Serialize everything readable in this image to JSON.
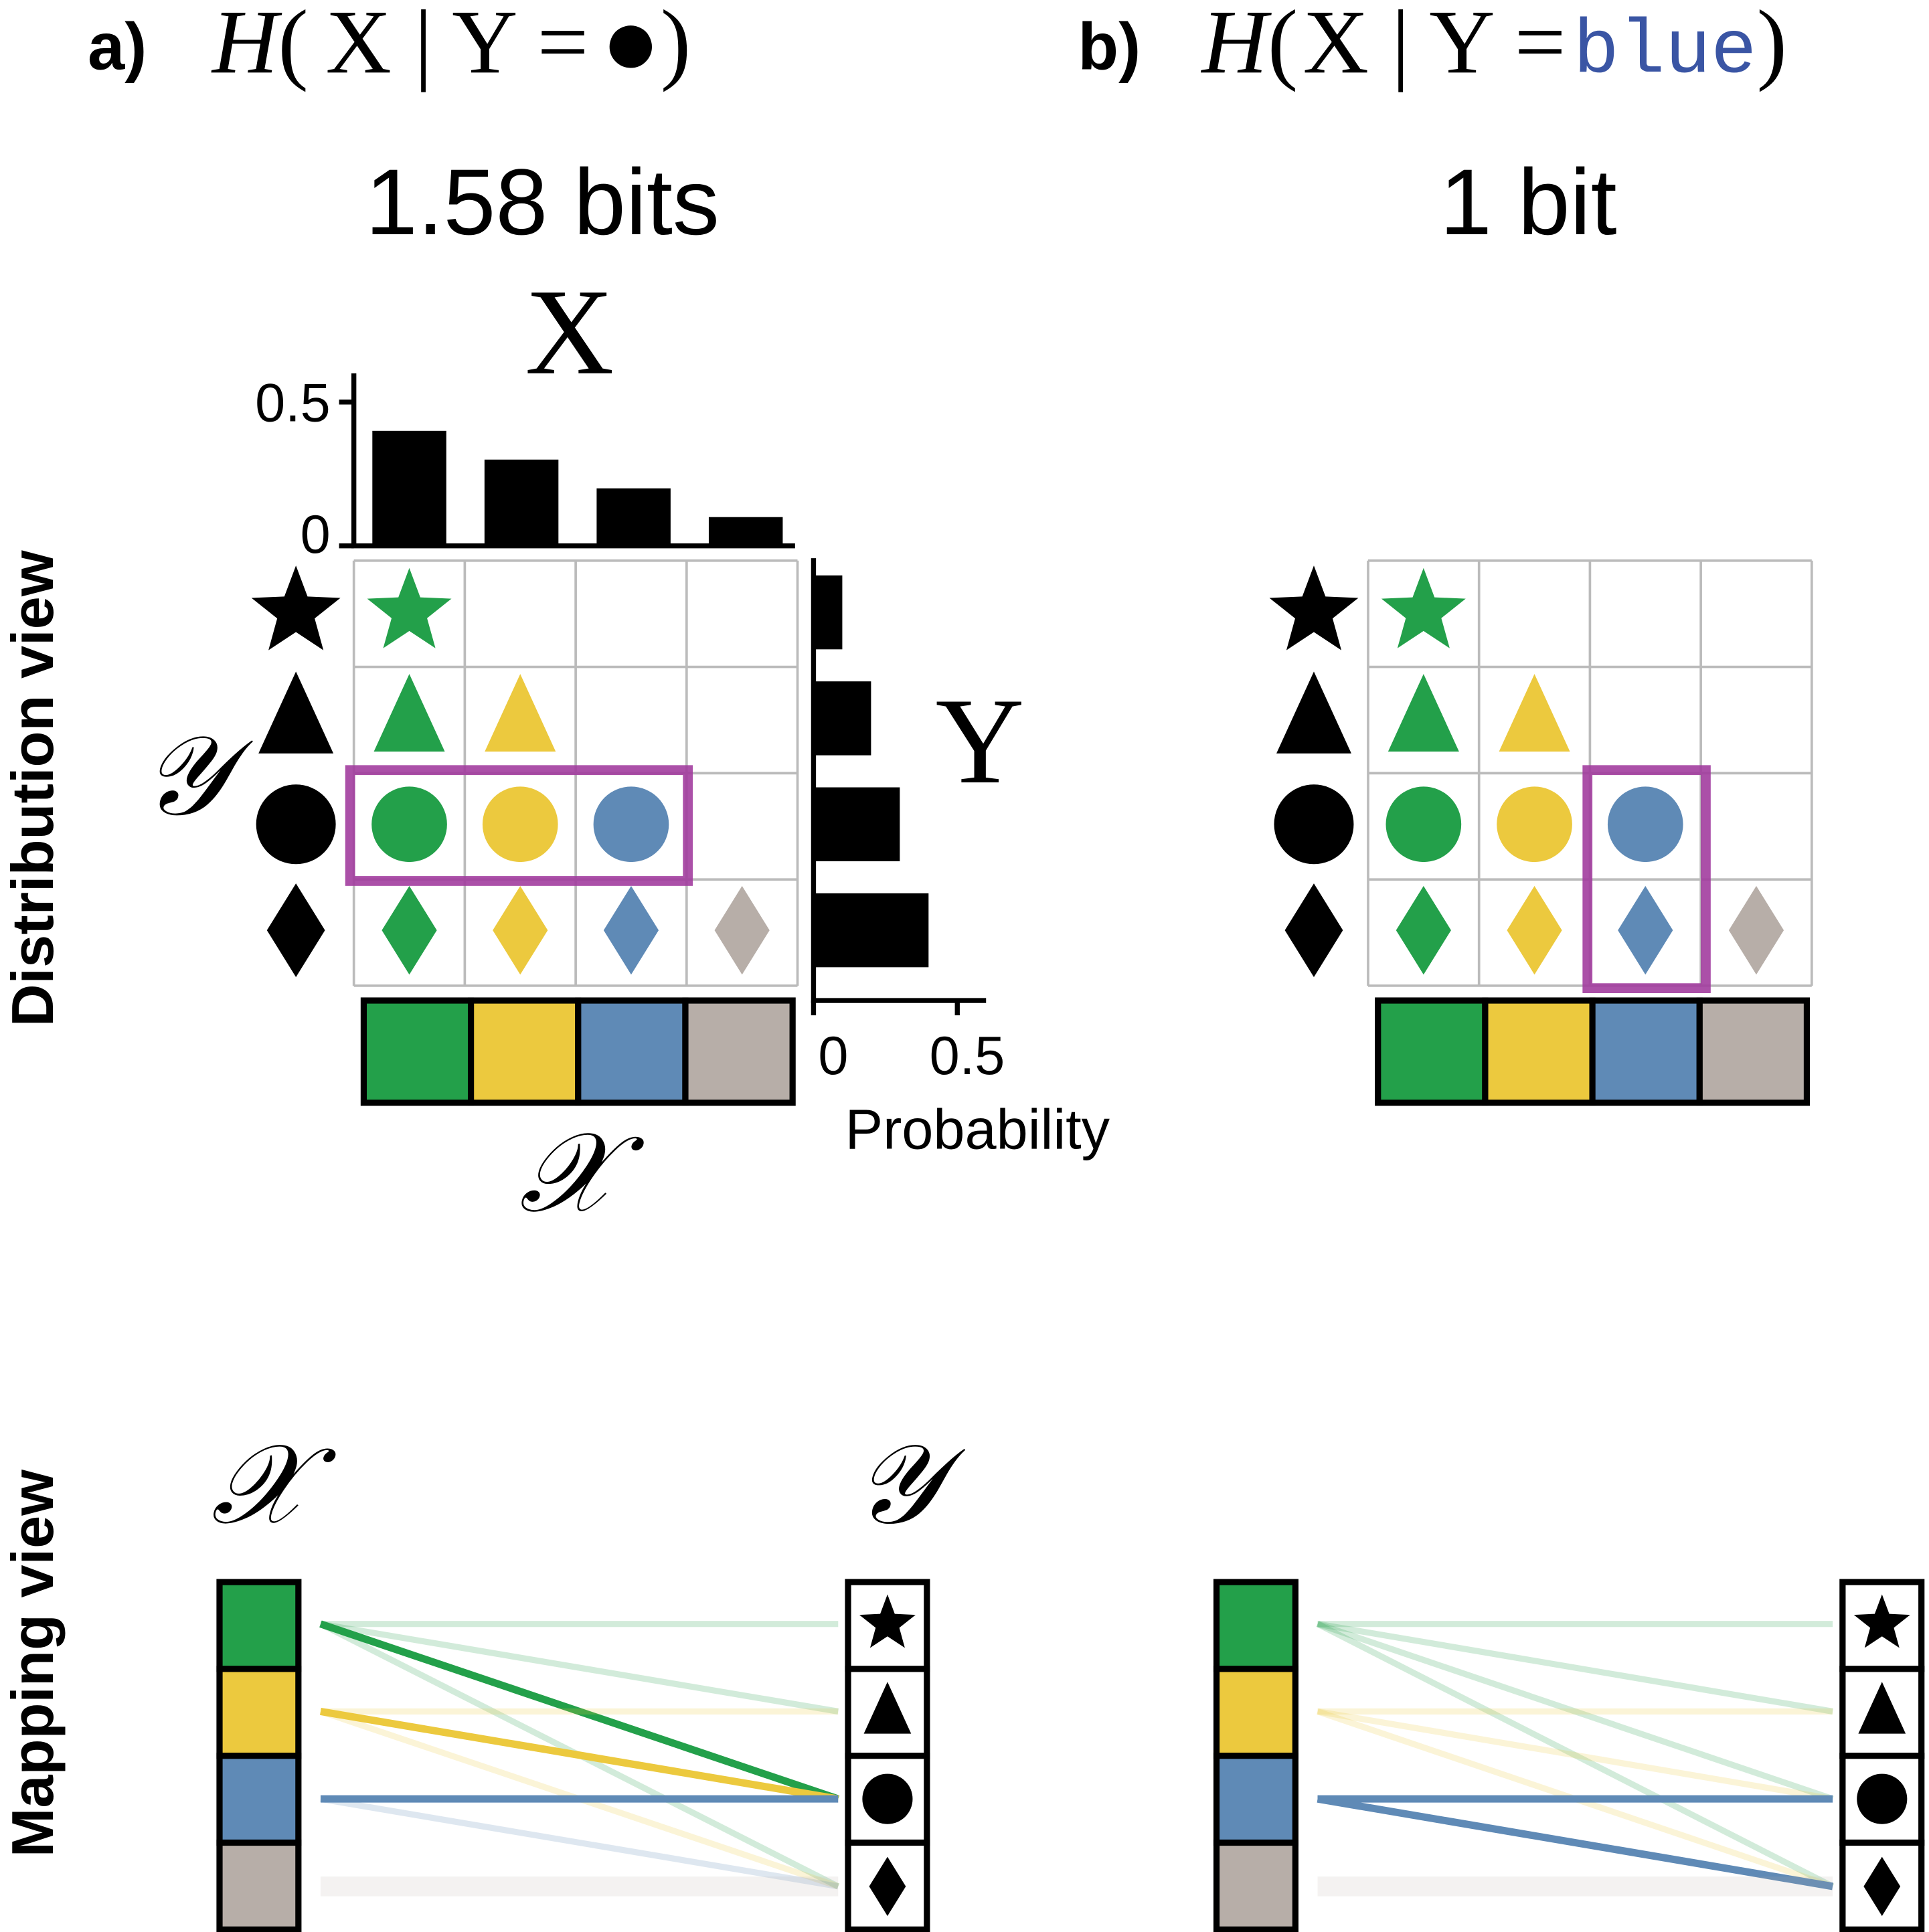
{
  "panel_a": {
    "label": "a)",
    "formula": {
      "func": "H",
      "open": "(",
      "given": "X | Y =",
      "condition": "●",
      "close": ")"
    },
    "entropy": "1.58 bits",
    "x_label": "X",
    "y_label": "Y",
    "x_space": "𝒳",
    "y_space": "𝒴",
    "x_marginal": {
      "values": [
        0.4,
        0.3,
        0.2,
        0.1
      ],
      "ylim": [
        0,
        0.6
      ],
      "ticks": [
        0,
        0.5
      ]
    },
    "y_marginal": {
      "values": [
        0.1,
        0.2,
        0.3,
        0.4
      ],
      "xlim": [
        0,
        0.6
      ],
      "ticks": [
        0,
        0.5
      ],
      "axis_label": "Probability"
    },
    "mapping_x_space": "𝒳",
    "mapping_y_space": "𝒴"
  },
  "panel_b": {
    "label": "b)",
    "formula": {
      "func": "H",
      "open": "(",
      "given": "X | Y =",
      "condition": "blue",
      "close": ")"
    },
    "entropy": "1 bit"
  },
  "side_labels": [
    "Distribution view",
    "Mapping view"
  ],
  "x_colors": [
    "#23a04a",
    "#ecc93e",
    "#5f8ab6",
    "#b7aea8"
  ],
  "highlight_color": "#a23d9e"
}
